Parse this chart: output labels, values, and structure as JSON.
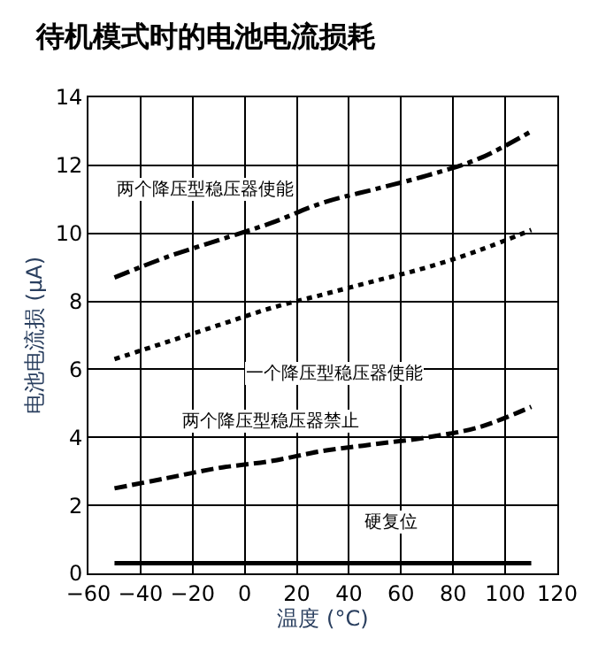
{
  "chart_data": {
    "type": "line",
    "title": "待机模式时的电池电流损耗",
    "xlabel": "温度 (°C)",
    "ylabel": "电池电流损 (μA)",
    "x": [
      -50,
      -30,
      -10,
      10,
      30,
      50,
      70,
      90,
      110
    ],
    "series": [
      {
        "name": "两个降压型稳压器使能",
        "color": "#000000",
        "line_style": "dashdot",
        "values": [
          8.7,
          9.3,
          9.8,
          10.3,
          10.9,
          11.3,
          11.7,
          12.2,
          13.0
        ]
      },
      {
        "name": "一个降压型稳压器使能",
        "color": "#000000",
        "line_style": "dotted",
        "values": [
          6.3,
          6.8,
          7.3,
          7.8,
          8.2,
          8.6,
          9.0,
          9.5,
          10.1
        ]
      },
      {
        "name": "两个降压型稳压器禁止",
        "color": "#000000",
        "line_style": "dashed",
        "values": [
          2.5,
          2.8,
          3.1,
          3.3,
          3.6,
          3.8,
          4.0,
          4.3,
          4.9
        ]
      },
      {
        "name": "硬复位",
        "color": "#000000",
        "line_style": "solid",
        "values": [
          0.3,
          0.3,
          0.3,
          0.3,
          0.3,
          0.3,
          0.3,
          0.3,
          0.3
        ]
      }
    ],
    "xlim": [
      -60,
      120
    ],
    "xticks": [
      -60,
      -40,
      -20,
      0,
      20,
      40,
      60,
      80,
      100,
      120
    ],
    "ylim": [
      0,
      14
    ],
    "yticks": [
      0,
      2,
      4,
      6,
      8,
      10,
      12,
      14
    ],
    "grid": true,
    "legend": false,
    "marker": "none"
  }
}
